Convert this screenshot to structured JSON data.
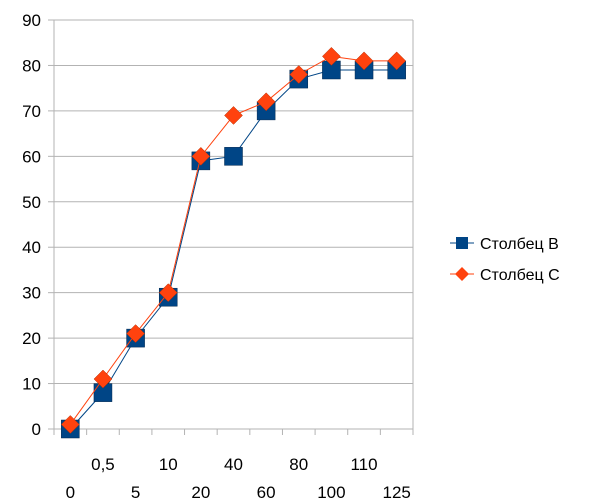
{
  "chart_data": {
    "type": "line",
    "title": "",
    "xlabel": "",
    "ylabel": "",
    "categories": [
      "0",
      "0,5",
      "5",
      "10",
      "20",
      "40",
      "60",
      "80",
      "100",
      "110",
      "125"
    ],
    "ylim": [
      0,
      90
    ],
    "y_ticks": [
      0,
      10,
      20,
      30,
      40,
      50,
      60,
      70,
      80,
      90
    ],
    "grid": "horizontal",
    "legend_position": "right",
    "series": [
      {
        "name": "Столбец B",
        "marker": "square",
        "color": "#004586",
        "values": [
          0,
          8,
          20,
          29,
          59,
          60,
          70,
          77,
          79,
          79,
          79
        ]
      },
      {
        "name": "Столбец C",
        "marker": "diamond",
        "color": "#ff420e",
        "values": [
          1,
          11,
          21,
          30,
          60,
          69,
          72,
          78,
          82,
          81,
          81
        ]
      }
    ]
  }
}
